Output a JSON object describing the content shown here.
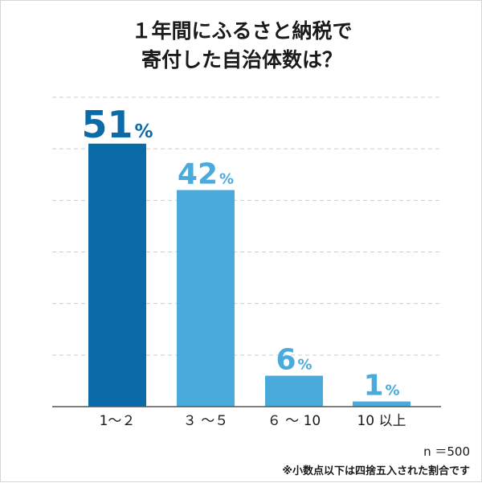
{
  "title_lines": [
    "１年間にふるさと納税で",
    "寄付した自治体数は？"
  ],
  "notes": {
    "sample": "n ＝500",
    "rounding": "※小数点以下は四捨五入された割合です"
  },
  "colors": {
    "highlight": "#0b6aa8",
    "bar": "#4aaadc",
    "grid": "#cccccc",
    "axis": "#555555"
  },
  "chart_data": {
    "type": "bar",
    "categories": [
      "1～２",
      "３ ～５",
      "６ ～ 10",
      "10 以上"
    ],
    "values": [
      51,
      42,
      6,
      1
    ],
    "unit": "%",
    "ylim": [
      0,
      60
    ],
    "grid": true,
    "highlight_index": 0
  }
}
